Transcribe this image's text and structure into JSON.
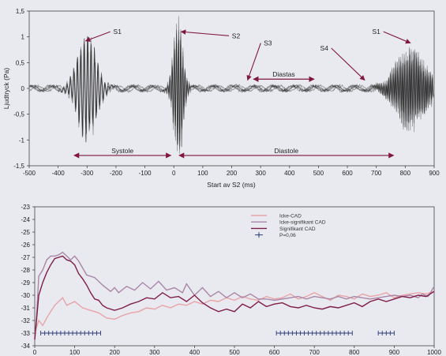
{
  "chart_data": [
    {
      "type": "line",
      "xlabel": "Start av S2 (ms)",
      "ylabel": "Ljudtryck (Pa)",
      "xlim": [
        -500,
        900
      ],
      "ylim": [
        -1.5,
        1.5
      ],
      "x_ticks": [
        -500,
        -400,
        -300,
        -200,
        -100,
        0,
        100,
        200,
        300,
        400,
        500,
        600,
        700,
        800,
        900
      ],
      "y_ticks": [
        1.5,
        1,
        0.5,
        0,
        -0.5,
        -1,
        -1.5
      ],
      "y_tick_labels": [
        "1,5",
        "1",
        "0,5",
        "0",
        "-0,5",
        "-1",
        "-1,5"
      ],
      "grid": false,
      "trace_color": "#1a1a1a",
      "annotation_color": "#7f1740",
      "waveform": {
        "description_free": true,
        "components": [
          {
            "center": -300,
            "width": 45,
            "amplitude": 0.95,
            "frequency_hz": 28
          },
          {
            "center": 15,
            "width": 22,
            "amplitude": 1.25,
            "frequency_hz": 45
          },
          {
            "center": 820,
            "width": 70,
            "amplitude": 0.75,
            "frequency_hz": 55
          }
        ],
        "baseline_amplitude": 0.05
      },
      "annotations": [
        {
          "text": "S1",
          "label_x": -195,
          "label_y": 1.1,
          "arrow_to_x": -305,
          "arrow_to_y": 0.92
        },
        {
          "text": "S2",
          "label_x": 215,
          "label_y": 1.02,
          "arrow_to_x": 25,
          "arrow_to_y": 1.1
        },
        {
          "text": "S3",
          "label_x": 325,
          "label_y": 0.88,
          "arrow_to_x": 255,
          "arrow_to_y": 0.16
        },
        {
          "text": "S4",
          "label_x": 520,
          "label_y": 0.78,
          "arrow_to_x": 660,
          "arrow_to_y": 0.16
        },
        {
          "text": "S1",
          "label_x": 700,
          "label_y": 1.1,
          "arrow_to_x": 818,
          "arrow_to_y": 0.88
        }
      ],
      "intervals": [
        {
          "text": "Diastas",
          "from": 275,
          "to": 485,
          "y": 0.18
        },
        {
          "text": "Systole",
          "from": -345,
          "to": -10,
          "y": -1.3
        },
        {
          "text": "Diastole",
          "from": 18,
          "to": 760,
          "y": -1.3
        }
      ]
    },
    {
      "type": "line",
      "xlim": [
        0,
        1000
      ],
      "ylim": [
        -34,
        -23
      ],
      "x_ticks": [
        0,
        100,
        200,
        300,
        400,
        500,
        600,
        700,
        800,
        900,
        1000
      ],
      "y_ticks": [
        -23,
        -24,
        -25,
        -26,
        -27,
        -28,
        -29,
        -30,
        -31,
        -32,
        -33,
        -34
      ],
      "grid": false,
      "legend_position": "top-right",
      "series": [
        {
          "name": "Icke-CAD",
          "color": "#e8a3a8",
          "points": [
            [
              0,
              -33
            ],
            [
              10,
              -32
            ],
            [
              20,
              -32.4
            ],
            [
              30,
              -31.8
            ],
            [
              40,
              -31.3
            ],
            [
              50,
              -30.8
            ],
            [
              60,
              -30.5
            ],
            [
              70,
              -30.2
            ],
            [
              80,
              -30.8
            ],
            [
              100,
              -30.5
            ],
            [
              120,
              -31
            ],
            [
              140,
              -31.2
            ],
            [
              160,
              -31.4
            ],
            [
              180,
              -31.8
            ],
            [
              200,
              -31.9
            ],
            [
              220,
              -31.6
            ],
            [
              240,
              -31.4
            ],
            [
              260,
              -31.3
            ],
            [
              280,
              -31
            ],
            [
              300,
              -31.1
            ],
            [
              320,
              -30.8
            ],
            [
              340,
              -31
            ],
            [
              360,
              -30.7
            ],
            [
              380,
              -30.8
            ],
            [
              400,
              -30.5
            ],
            [
              420,
              -30.7
            ],
            [
              440,
              -30.4
            ],
            [
              460,
              -30.5
            ],
            [
              480,
              -30.2
            ],
            [
              500,
              -30.4
            ],
            [
              520,
              -30.1
            ],
            [
              540,
              -30.3
            ],
            [
              560,
              -30.4
            ],
            [
              580,
              -30.1
            ],
            [
              600,
              -30.3
            ],
            [
              620,
              -30.2
            ],
            [
              640,
              -29.9
            ],
            [
              660,
              -30.3
            ],
            [
              680,
              -30.1
            ],
            [
              700,
              -29.8
            ],
            [
              720,
              -30.1
            ],
            [
              740,
              -30.4
            ],
            [
              760,
              -30
            ],
            [
              780,
              -30.1
            ],
            [
              800,
              -30.3
            ],
            [
              820,
              -29.9
            ],
            [
              840,
              -30.1
            ],
            [
              860,
              -30
            ],
            [
              880,
              -29.8
            ],
            [
              900,
              -30.2
            ],
            [
              920,
              -30
            ],
            [
              940,
              -29.9
            ],
            [
              960,
              -29.8
            ],
            [
              980,
              -29.9
            ],
            [
              1000,
              -29.7
            ]
          ]
        },
        {
          "name": "Icke-signifikant CAD",
          "color": "#a986a8",
          "points": [
            [
              0,
              -33.5
            ],
            [
              5,
              -31.5
            ],
            [
              10,
              -28.5
            ],
            [
              20,
              -28
            ],
            [
              30,
              -27.2
            ],
            [
              40,
              -26.9
            ],
            [
              50,
              -26.9
            ],
            [
              60,
              -26.8
            ],
            [
              70,
              -26.6
            ],
            [
              80,
              -26.9
            ],
            [
              90,
              -27.2
            ],
            [
              100,
              -26.9
            ],
            [
              110,
              -27.3
            ],
            [
              130,
              -28.4
            ],
            [
              150,
              -28.6
            ],
            [
              170,
              -29.2
            ],
            [
              190,
              -29.7
            ],
            [
              200,
              -29.4
            ],
            [
              210,
              -29.8
            ],
            [
              230,
              -29.3
            ],
            [
              250,
              -29.6
            ],
            [
              270,
              -29
            ],
            [
              290,
              -29.5
            ],
            [
              310,
              -28.9
            ],
            [
              330,
              -29.6
            ],
            [
              350,
              -29.4
            ],
            [
              370,
              -29.8
            ],
            [
              380,
              -29.1
            ],
            [
              400,
              -30
            ],
            [
              420,
              -29.4
            ],
            [
              440,
              -30.1
            ],
            [
              460,
              -29.7
            ],
            [
              480,
              -30.2
            ],
            [
              500,
              -29.8
            ],
            [
              520,
              -30.2
            ],
            [
              540,
              -29.9
            ],
            [
              560,
              -30.3
            ],
            [
              580,
              -30.3
            ],
            [
              600,
              -30.4
            ],
            [
              620,
              -30.3
            ],
            [
              640,
              -30.2
            ],
            [
              660,
              -30.1
            ],
            [
              680,
              -30.3
            ],
            [
              700,
              -30.1
            ],
            [
              720,
              -30.2
            ],
            [
              740,
              -30.3
            ],
            [
              760,
              -30.1
            ],
            [
              780,
              -30.3
            ],
            [
              800,
              -30.1
            ],
            [
              820,
              -30.2
            ],
            [
              840,
              -30.3
            ],
            [
              860,
              -30.2
            ],
            [
              880,
              -30.1
            ],
            [
              900,
              -30
            ],
            [
              920,
              -30.1
            ],
            [
              940,
              -30
            ],
            [
              960,
              -30.2
            ],
            [
              970,
              -29.9
            ],
            [
              985,
              -30.1
            ],
            [
              1000,
              -29.3
            ]
          ]
        },
        {
          "name": "Signifikant CAD",
          "color": "#7f1d4a",
          "points": [
            [
              0,
              -33.5
            ],
            [
              5,
              -31.8
            ],
            [
              10,
              -30
            ],
            [
              20,
              -29
            ],
            [
              30,
              -28.2
            ],
            [
              40,
              -27.6
            ],
            [
              50,
              -27.1
            ],
            [
              60,
              -27
            ],
            [
              70,
              -26.9
            ],
            [
              80,
              -27.2
            ],
            [
              90,
              -27.3
            ],
            [
              100,
              -27.6
            ],
            [
              110,
              -28.3
            ],
            [
              120,
              -28.7
            ],
            [
              130,
              -29.2
            ],
            [
              140,
              -29.8
            ],
            [
              150,
              -30.3
            ],
            [
              160,
              -30.4
            ],
            [
              170,
              -30.8
            ],
            [
              180,
              -31
            ],
            [
              200,
              -31.2
            ],
            [
              220,
              -31
            ],
            [
              240,
              -30.7
            ],
            [
              260,
              -30.5
            ],
            [
              280,
              -30.2
            ],
            [
              300,
              -30.3
            ],
            [
              320,
              -29.8
            ],
            [
              340,
              -30.2
            ],
            [
              360,
              -30.1
            ],
            [
              380,
              -30.5
            ],
            [
              400,
              -30
            ],
            [
              420,
              -30.6
            ],
            [
              440,
              -31
            ],
            [
              460,
              -31.3
            ],
            [
              480,
              -31.1
            ],
            [
              500,
              -31.3
            ],
            [
              520,
              -30.7
            ],
            [
              540,
              -31
            ],
            [
              560,
              -30.5
            ],
            [
              580,
              -30.9
            ],
            [
              600,
              -30.7
            ],
            [
              620,
              -30.6
            ],
            [
              640,
              -30.9
            ],
            [
              660,
              -31
            ],
            [
              680,
              -30.8
            ],
            [
              700,
              -31
            ],
            [
              720,
              -31.1
            ],
            [
              740,
              -30.9
            ],
            [
              760,
              -31
            ],
            [
              780,
              -30.8
            ],
            [
              800,
              -30.6
            ],
            [
              820,
              -30.9
            ],
            [
              840,
              -30.5
            ],
            [
              860,
              -30.3
            ],
            [
              880,
              -30.5
            ],
            [
              900,
              -30.3
            ],
            [
              920,
              -30.1
            ],
            [
              940,
              -30.2
            ],
            [
              960,
              -30
            ],
            [
              980,
              -30.1
            ],
            [
              1000,
              -29.7
            ]
          ]
        }
      ],
      "significance": {
        "name": "P=0,06",
        "color": "#2b3a7a",
        "y": -33,
        "ranges": [
          [
            15,
            165
          ],
          [
            605,
            795
          ],
          [
            860,
            900
          ]
        ],
        "step": 10
      }
    }
  ]
}
